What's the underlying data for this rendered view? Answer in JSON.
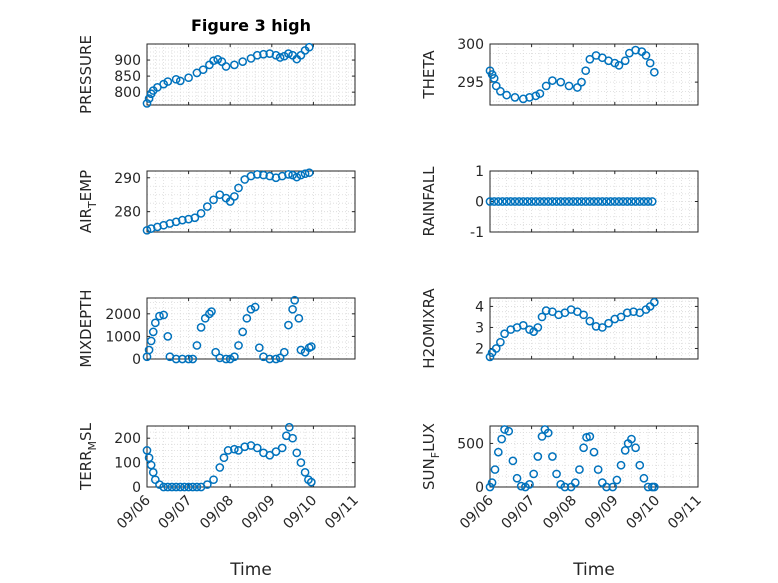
{
  "chart_data": [
    {
      "type": "scatter",
      "title": "Figure 3 high",
      "ylabel": "PRESSURE",
      "xlim": [
        "09/06",
        "09/11"
      ],
      "ylim": [
        760,
        950
      ],
      "yticks": [
        800,
        850,
        900
      ],
      "points": [
        [
          0,
          765
        ],
        [
          0.05,
          780
        ],
        [
          0.1,
          795
        ],
        [
          0.15,
          805
        ],
        [
          0.25,
          815
        ],
        [
          0.4,
          825
        ],
        [
          0.5,
          833
        ],
        [
          0.7,
          840
        ],
        [
          0.8,
          835
        ],
        [
          1.0,
          845
        ],
        [
          1.2,
          860
        ],
        [
          1.35,
          870
        ],
        [
          1.5,
          885
        ],
        [
          1.6,
          898
        ],
        [
          1.7,
          902
        ],
        [
          1.8,
          895
        ],
        [
          1.9,
          880
        ],
        [
          2.1,
          885
        ],
        [
          2.3,
          895
        ],
        [
          2.5,
          905
        ],
        [
          2.65,
          915
        ],
        [
          2.8,
          918
        ],
        [
          2.95,
          920
        ],
        [
          3.1,
          915
        ],
        [
          3.2,
          908
        ],
        [
          3.3,
          912
        ],
        [
          3.4,
          920
        ],
        [
          3.5,
          915
        ],
        [
          3.6,
          903
        ],
        [
          3.7,
          915
        ],
        [
          3.8,
          930
        ],
        [
          3.9,
          940
        ]
      ]
    },
    {
      "type": "scatter",
      "ylabel": "THETA",
      "xlim": [
        "09/06",
        "09/11"
      ],
      "ylim": [
        292,
        300
      ],
      "yticks": [
        295,
        300
      ],
      "points": [
        [
          0,
          296.5
        ],
        [
          0.05,
          296
        ],
        [
          0.1,
          295.5
        ],
        [
          0.15,
          294.5
        ],
        [
          0.25,
          293.8
        ],
        [
          0.4,
          293.3
        ],
        [
          0.6,
          293.0
        ],
        [
          0.8,
          292.8
        ],
        [
          0.95,
          293.0
        ],
        [
          1.1,
          293.2
        ],
        [
          1.2,
          293.5
        ],
        [
          1.35,
          294.5
        ],
        [
          1.5,
          295.2
        ],
        [
          1.7,
          295.0
        ],
        [
          1.9,
          294.5
        ],
        [
          2.1,
          294.3
        ],
        [
          2.2,
          295.0
        ],
        [
          2.3,
          296.5
        ],
        [
          2.4,
          298.0
        ],
        [
          2.55,
          298.5
        ],
        [
          2.7,
          298.2
        ],
        [
          2.85,
          297.8
        ],
        [
          3.0,
          297.5
        ],
        [
          3.1,
          297.2
        ],
        [
          3.25,
          297.8
        ],
        [
          3.35,
          298.8
        ],
        [
          3.5,
          299.2
        ],
        [
          3.65,
          299.0
        ],
        [
          3.75,
          298.5
        ],
        [
          3.85,
          297.5
        ],
        [
          3.95,
          296.3
        ]
      ]
    },
    {
      "type": "scatter",
      "ylabel": "AIR_TEMP",
      "xlim": [
        "09/06",
        "09/11"
      ],
      "ylim": [
        274,
        292
      ],
      "yticks": [
        280,
        290
      ],
      "points": [
        [
          0,
          274.5
        ],
        [
          0.1,
          275
        ],
        [
          0.25,
          275.5
        ],
        [
          0.4,
          276
        ],
        [
          0.55,
          276.5
        ],
        [
          0.7,
          277
        ],
        [
          0.85,
          277.5
        ],
        [
          1.0,
          277.8
        ],
        [
          1.15,
          278.2
        ],
        [
          1.3,
          279.5
        ],
        [
          1.45,
          281.5
        ],
        [
          1.6,
          283.5
        ],
        [
          1.75,
          285
        ],
        [
          1.9,
          284
        ],
        [
          2.0,
          283
        ],
        [
          2.1,
          284.5
        ],
        [
          2.2,
          287
        ],
        [
          2.35,
          289.5
        ],
        [
          2.5,
          290.5
        ],
        [
          2.65,
          291
        ],
        [
          2.8,
          290.8
        ],
        [
          2.95,
          290.5
        ],
        [
          3.1,
          290
        ],
        [
          3.25,
          290.5
        ],
        [
          3.4,
          291
        ],
        [
          3.5,
          290.8
        ],
        [
          3.6,
          290.2
        ],
        [
          3.7,
          290.8
        ],
        [
          3.8,
          291.2
        ],
        [
          3.9,
          291.5
        ]
      ]
    },
    {
      "type": "scatter",
      "ylabel": "RAINFALL",
      "xlim": [
        "09/06",
        "09/11"
      ],
      "ylim": [
        -1,
        1
      ],
      "yticks": [
        -1,
        0,
        1
      ],
      "points": [
        [
          0,
          0
        ],
        [
          0.1,
          0
        ],
        [
          0.2,
          0
        ],
        [
          0.3,
          0
        ],
        [
          0.4,
          0
        ],
        [
          0.5,
          0
        ],
        [
          0.6,
          0
        ],
        [
          0.7,
          0
        ],
        [
          0.8,
          0
        ],
        [
          0.9,
          0
        ],
        [
          1.0,
          0
        ],
        [
          1.1,
          0
        ],
        [
          1.2,
          0
        ],
        [
          1.3,
          0
        ],
        [
          1.4,
          0
        ],
        [
          1.5,
          0
        ],
        [
          1.6,
          0
        ],
        [
          1.7,
          0
        ],
        [
          1.8,
          0
        ],
        [
          1.9,
          0
        ],
        [
          2.0,
          0
        ],
        [
          2.1,
          0
        ],
        [
          2.2,
          0
        ],
        [
          2.3,
          0
        ],
        [
          2.4,
          0
        ],
        [
          2.5,
          0
        ],
        [
          2.6,
          0
        ],
        [
          2.7,
          0
        ],
        [
          2.8,
          0
        ],
        [
          2.9,
          0
        ],
        [
          3.0,
          0
        ],
        [
          3.1,
          0
        ],
        [
          3.2,
          0
        ],
        [
          3.3,
          0
        ],
        [
          3.4,
          0
        ],
        [
          3.5,
          0
        ],
        [
          3.6,
          0
        ],
        [
          3.7,
          0
        ],
        [
          3.8,
          0
        ],
        [
          3.9,
          0
        ]
      ]
    },
    {
      "type": "scatter",
      "ylabel": "MIXDEPTH",
      "xlim": [
        "09/06",
        "09/11"
      ],
      "ylim": [
        0,
        2700
      ],
      "yticks": [
        0,
        1000,
        2000
      ],
      "points": [
        [
          0,
          100
        ],
        [
          0.05,
          400
        ],
        [
          0.1,
          800
        ],
        [
          0.15,
          1200
        ],
        [
          0.2,
          1600
        ],
        [
          0.3,
          1900
        ],
        [
          0.4,
          1950
        ],
        [
          0.5,
          1000
        ],
        [
          0.55,
          100
        ],
        [
          0.7,
          0
        ],
        [
          0.85,
          0
        ],
        [
          1.0,
          0
        ],
        [
          1.1,
          0
        ],
        [
          1.2,
          600
        ],
        [
          1.3,
          1400
        ],
        [
          1.4,
          1800
        ],
        [
          1.5,
          2000
        ],
        [
          1.55,
          2100
        ],
        [
          1.65,
          300
        ],
        [
          1.75,
          50
        ],
        [
          1.9,
          0
        ],
        [
          2.0,
          0
        ],
        [
          2.1,
          100
        ],
        [
          2.2,
          600
        ],
        [
          2.3,
          1200
        ],
        [
          2.4,
          1800
        ],
        [
          2.5,
          2200
        ],
        [
          2.6,
          2300
        ],
        [
          2.7,
          500
        ],
        [
          2.8,
          100
        ],
        [
          2.95,
          0
        ],
        [
          3.1,
          0
        ],
        [
          3.2,
          50
        ],
        [
          3.3,
          300
        ],
        [
          3.4,
          1500
        ],
        [
          3.5,
          2200
        ],
        [
          3.55,
          2600
        ],
        [
          3.65,
          1800
        ],
        [
          3.7,
          400
        ],
        [
          3.8,
          300
        ],
        [
          3.9,
          500
        ],
        [
          3.95,
          550
        ]
      ]
    },
    {
      "type": "scatter",
      "ylabel": "H2OMIXRA",
      "xlim": [
        "09/06",
        "09/11"
      ],
      "ylim": [
        1.5,
        4.4
      ],
      "yticks": [
        2,
        3,
        4
      ],
      "points": [
        [
          0,
          1.6
        ],
        [
          0.05,
          1.8
        ],
        [
          0.15,
          2.0
        ],
        [
          0.25,
          2.3
        ],
        [
          0.35,
          2.7
        ],
        [
          0.5,
          2.9
        ],
        [
          0.65,
          3.0
        ],
        [
          0.8,
          3.1
        ],
        [
          0.95,
          2.9
        ],
        [
          1.05,
          2.8
        ],
        [
          1.15,
          3.0
        ],
        [
          1.25,
          3.5
        ],
        [
          1.35,
          3.8
        ],
        [
          1.5,
          3.75
        ],
        [
          1.65,
          3.6
        ],
        [
          1.8,
          3.7
        ],
        [
          1.95,
          3.85
        ],
        [
          2.1,
          3.75
        ],
        [
          2.25,
          3.6
        ],
        [
          2.4,
          3.3
        ],
        [
          2.55,
          3.05
        ],
        [
          2.7,
          3.0
        ],
        [
          2.85,
          3.2
        ],
        [
          3.0,
          3.4
        ],
        [
          3.15,
          3.5
        ],
        [
          3.3,
          3.7
        ],
        [
          3.45,
          3.75
        ],
        [
          3.6,
          3.7
        ],
        [
          3.75,
          3.85
        ],
        [
          3.85,
          4.0
        ],
        [
          3.95,
          4.2
        ]
      ]
    },
    {
      "type": "scatter",
      "ylabel": "TERR_MSL",
      "xlim": [
        "09/06",
        "09/11"
      ],
      "ylim": [
        0,
        250
      ],
      "yticks": [
        0,
        100,
        200
      ],
      "points": [
        [
          0,
          150
        ],
        [
          0.05,
          120
        ],
        [
          0.1,
          90
        ],
        [
          0.15,
          60
        ],
        [
          0.2,
          30
        ],
        [
          0.3,
          10
        ],
        [
          0.4,
          0
        ],
        [
          0.5,
          0
        ],
        [
          0.6,
          0
        ],
        [
          0.7,
          0
        ],
        [
          0.8,
          0
        ],
        [
          0.9,
          0
        ],
        [
          1.0,
          0
        ],
        [
          1.1,
          0
        ],
        [
          1.2,
          0
        ],
        [
          1.3,
          0
        ],
        [
          1.45,
          10
        ],
        [
          1.6,
          30
        ],
        [
          1.75,
          80
        ],
        [
          1.85,
          120
        ],
        [
          1.95,
          150
        ],
        [
          2.1,
          155
        ],
        [
          2.2,
          150
        ],
        [
          2.35,
          165
        ],
        [
          2.5,
          170
        ],
        [
          2.65,
          160
        ],
        [
          2.8,
          140
        ],
        [
          2.95,
          130
        ],
        [
          3.1,
          145
        ],
        [
          3.25,
          160
        ],
        [
          3.35,
          210
        ],
        [
          3.42,
          245
        ],
        [
          3.5,
          200
        ],
        [
          3.6,
          140
        ],
        [
          3.7,
          100
        ],
        [
          3.8,
          60
        ],
        [
          3.88,
          30
        ],
        [
          3.95,
          20
        ]
      ]
    },
    {
      "type": "scatter",
      "ylabel": "SUN_FLUX",
      "xlim": [
        "09/06",
        "09/11"
      ],
      "ylim": [
        0,
        700
      ],
      "yticks": [
        0,
        500
      ],
      "points": [
        [
          0,
          0
        ],
        [
          0.05,
          50
        ],
        [
          0.12,
          200
        ],
        [
          0.2,
          400
        ],
        [
          0.28,
          550
        ],
        [
          0.35,
          660
        ],
        [
          0.45,
          640
        ],
        [
          0.55,
          300
        ],
        [
          0.65,
          100
        ],
        [
          0.75,
          10
        ],
        [
          0.85,
          0
        ],
        [
          0.95,
          30
        ],
        [
          1.05,
          150
        ],
        [
          1.15,
          350
        ],
        [
          1.25,
          580
        ],
        [
          1.32,
          660
        ],
        [
          1.4,
          620
        ],
        [
          1.5,
          350
        ],
        [
          1.6,
          150
        ],
        [
          1.7,
          30
        ],
        [
          1.8,
          0
        ],
        [
          1.95,
          0
        ],
        [
          2.05,
          50
        ],
        [
          2.15,
          200
        ],
        [
          2.25,
          450
        ],
        [
          2.32,
          570
        ],
        [
          2.4,
          580
        ],
        [
          2.5,
          400
        ],
        [
          2.6,
          200
        ],
        [
          2.7,
          50
        ],
        [
          2.8,
          0
        ],
        [
          2.95,
          0
        ],
        [
          3.05,
          80
        ],
        [
          3.15,
          250
        ],
        [
          3.25,
          420
        ],
        [
          3.32,
          500
        ],
        [
          3.4,
          550
        ],
        [
          3.5,
          450
        ],
        [
          3.6,
          250
        ],
        [
          3.7,
          100
        ],
        [
          3.8,
          0
        ],
        [
          3.9,
          0
        ],
        [
          3.95,
          0
        ]
      ]
    }
  ],
  "xticks": [
    "09/06",
    "09/07",
    "09/08",
    "09/09",
    "09/10",
    "09/11"
  ],
  "xlabel": "Time",
  "colors": {
    "marker": "#0072BD",
    "axis": "#262626"
  }
}
